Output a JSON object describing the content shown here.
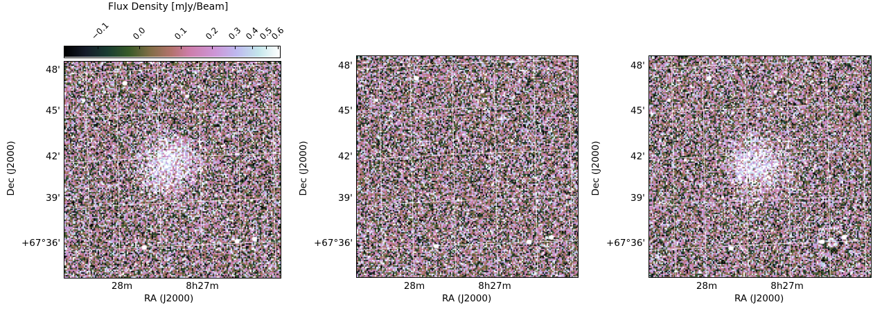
{
  "colorbar": {
    "title": "Flux Density [mJy/Beam]",
    "ticks": [
      "−0.1",
      "0.0",
      "0.1",
      "0.2",
      "0.3",
      "0.4",
      "0.5",
      "0.6"
    ],
    "tick_values": [
      -0.1,
      0.0,
      0.1,
      0.2,
      0.3,
      0.4,
      0.5,
      0.6
    ],
    "range": [
      -0.21,
      0.62
    ],
    "colormap": "cubehelix-like (black → dark green → pink → lavender → cyan → white)"
  },
  "panels": [
    {
      "id": "panel-1",
      "xlabel": "RA (J2000)",
      "ylabel": "Dec (J2000)",
      "xticks": [
        "28m",
        "8h27m"
      ],
      "yticks": [
        "48'",
        "45'",
        "42'",
        "39'",
        "+67°36'"
      ],
      "features": [
        "diffuse-halo",
        "point-sources"
      ]
    },
    {
      "id": "panel-2",
      "xlabel": "RA (J2000)",
      "ylabel": "Dec (J2000)",
      "xticks": [
        "28m",
        "8h27m"
      ],
      "yticks": [
        "48'",
        "45'",
        "42'",
        "39'",
        "+67°36'"
      ],
      "features": [
        "point-sources"
      ]
    },
    {
      "id": "panel-3",
      "xlabel": "RA (J2000)",
      "ylabel": "Dec (J2000)",
      "xticks": [
        "28m",
        "8h27m"
      ],
      "yticks": [
        "48'",
        "45'",
        "42'",
        "39'",
        "+67°36'"
      ],
      "features": [
        "diffuse-halo",
        "point-sources",
        "artifact-rings"
      ]
    }
  ],
  "colors": {
    "grid": "#ffffff",
    "frame": "#000000",
    "background": "#ffffff"
  }
}
